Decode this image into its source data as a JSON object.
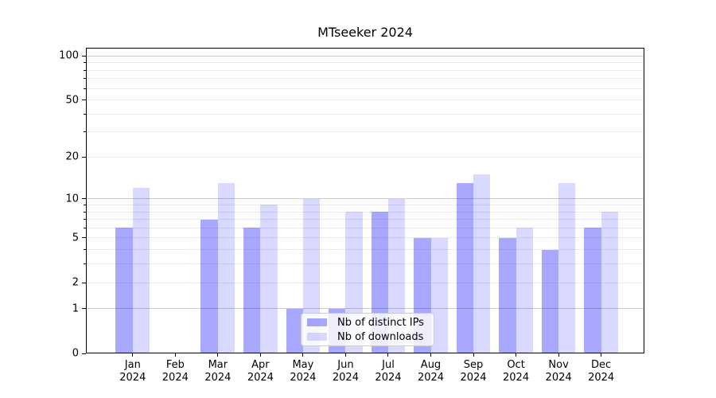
{
  "chart_data": {
    "type": "bar",
    "title": "MTseeker 2024",
    "x_categories": [
      {
        "month": "Jan",
        "year": "2024"
      },
      {
        "month": "Feb",
        "year": "2024"
      },
      {
        "month": "Mar",
        "year": "2024"
      },
      {
        "month": "Apr",
        "year": "2024"
      },
      {
        "month": "May",
        "year": "2024"
      },
      {
        "month": "Jun",
        "year": "2024"
      },
      {
        "month": "Jul",
        "year": "2024"
      },
      {
        "month": "Aug",
        "year": "2024"
      },
      {
        "month": "Sep",
        "year": "2024"
      },
      {
        "month": "Oct",
        "year": "2024"
      },
      {
        "month": "Nov",
        "year": "2024"
      },
      {
        "month": "Dec",
        "year": "2024"
      }
    ],
    "series": [
      {
        "name": "Nb of distinct IPs",
        "color_hex": "#0000ff",
        "alpha": 0.34,
        "values": [
          6,
          0,
          7,
          6,
          1,
          1,
          8,
          5,
          13,
          5,
          4,
          6
        ]
      },
      {
        "name": "Nb of downloads",
        "color_hex": "#0000ff",
        "alpha": 0.15,
        "values": [
          12,
          0,
          13,
          9,
          10,
          8,
          10,
          5,
          15,
          6,
          13,
          8
        ]
      }
    ],
    "yscale": "log1p",
    "ylim": [
      0,
      113.5
    ],
    "yticks_labeled": [
      0,
      1,
      2,
      5,
      10,
      20,
      50,
      100
    ],
    "yticks_minor": [
      3,
      4,
      6,
      7,
      8,
      9,
      30,
      40,
      60,
      70,
      80,
      90
    ],
    "gridlines_major": [
      1,
      10,
      100
    ],
    "gridlines_minor": [
      2,
      3,
      4,
      5,
      6,
      7,
      8,
      9,
      20,
      30,
      40,
      50,
      60,
      70,
      80,
      90
    ],
    "grid": true,
    "legend": {
      "position": "lower-center",
      "entries": [
        "Nb of distinct IPs",
        "Nb of downloads"
      ]
    },
    "colors": {
      "grid_major": "#cccccc",
      "grid_minor": "#ebebeb",
      "spine": "#000000",
      "text": "#000000"
    }
  }
}
